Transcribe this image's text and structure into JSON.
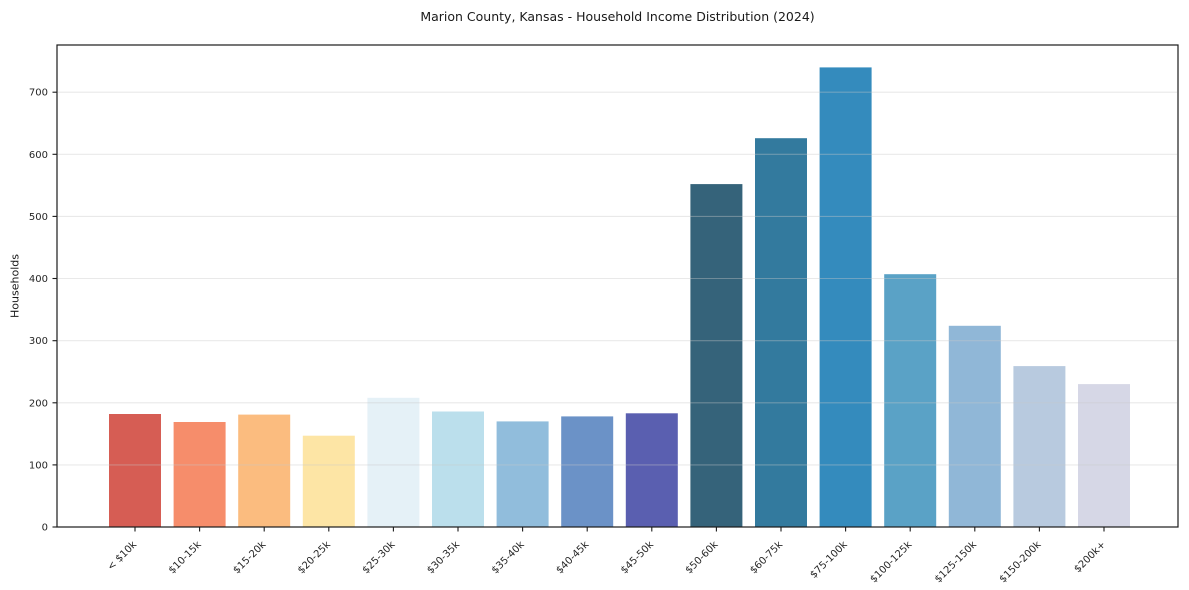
{
  "chart_data": {
    "type": "bar",
    "title": "Marion County, Kansas - Household Income Distribution (2024)",
    "xlabel": "",
    "ylabel": "Households",
    "categories": [
      "< $10k",
      "$10-15k",
      "$15-20k",
      "$20-25k",
      "$25-30k",
      "$30-35k",
      "$35-40k",
      "$40-45k",
      "$45-50k",
      "$50-60k",
      "$60-75k",
      "$75-100k",
      "$100-125k",
      "$125-150k",
      "$150-200k",
      "$200k+"
    ],
    "values": [
      182,
      169,
      181,
      147,
      208,
      186,
      170,
      178,
      183,
      552,
      626,
      740,
      407,
      324,
      259,
      230
    ],
    "bar_colors": [
      "#d65d54",
      "#f68d6b",
      "#fbbc7f",
      "#fde5a5",
      "#e5f1f7",
      "#bbdfec",
      "#91bddc",
      "#6b92c7",
      "#5a5fb0",
      "#35637a",
      "#337a9e",
      "#348bbd",
      "#5aa2c6",
      "#90b7d7",
      "#b8cadf",
      "#d6d7e6"
    ],
    "yticks": [
      0,
      100,
      200,
      300,
      400,
      500,
      600,
      700
    ],
    "ylim": [
      0,
      776
    ],
    "xtick_rotation_deg": 45,
    "grid": "horizontal",
    "legend": "none",
    "background_color": "#ffffff",
    "text_color": "#262626",
    "gridline_color": "#e9e9e9",
    "spine_color": "#1a1a1a"
  }
}
